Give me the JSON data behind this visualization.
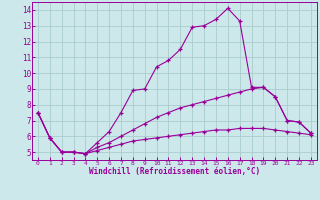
{
  "xlabel": "Windchill (Refroidissement éolien,°C)",
  "background_color": "#cce8ea",
  "grid_color": "#aacccc",
  "line_color": "#990099",
  "x_values": [
    0,
    1,
    2,
    3,
    4,
    5,
    6,
    7,
    8,
    9,
    10,
    11,
    12,
    13,
    14,
    15,
    16,
    17,
    18,
    19,
    20,
    21,
    22,
    23
  ],
  "line1": [
    7.5,
    5.9,
    5.0,
    5.0,
    4.9,
    5.6,
    6.3,
    7.5,
    8.9,
    9.0,
    10.4,
    10.8,
    11.5,
    12.9,
    13.0,
    13.4,
    14.1,
    13.3,
    9.1,
    9.1,
    8.5,
    7.0,
    6.9,
    6.2
  ],
  "line2": [
    7.5,
    5.9,
    5.0,
    5.0,
    4.9,
    5.3,
    5.6,
    6.0,
    6.4,
    6.8,
    7.2,
    7.5,
    7.8,
    8.0,
    8.2,
    8.4,
    8.6,
    8.8,
    9.0,
    9.1,
    8.5,
    7.0,
    6.9,
    6.2
  ],
  "line3": [
    7.5,
    5.9,
    5.0,
    5.0,
    4.9,
    5.1,
    5.3,
    5.5,
    5.7,
    5.8,
    5.9,
    6.0,
    6.1,
    6.2,
    6.3,
    6.4,
    6.4,
    6.5,
    6.5,
    6.5,
    6.4,
    6.3,
    6.2,
    6.1
  ],
  "ylim": [
    4.5,
    14.5
  ],
  "yticks": [
    5,
    6,
    7,
    8,
    9,
    10,
    11,
    12,
    13,
    14
  ],
  "xticks": [
    0,
    1,
    2,
    3,
    4,
    5,
    6,
    7,
    8,
    9,
    10,
    11,
    12,
    13,
    14,
    15,
    16,
    17,
    18,
    19,
    20,
    21,
    22,
    23
  ],
  "figsize": [
    3.2,
    2.0
  ],
  "dpi": 100
}
